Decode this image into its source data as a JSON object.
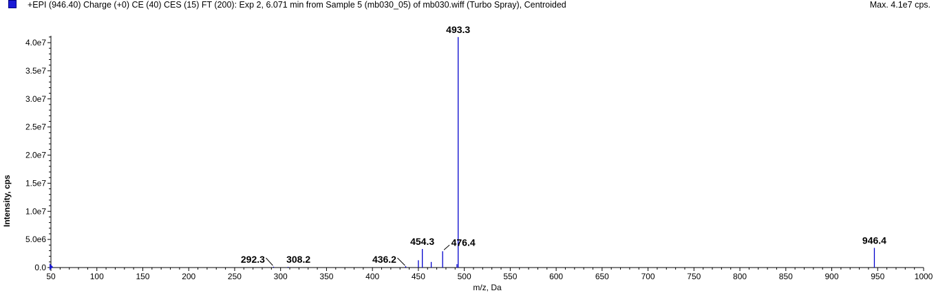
{
  "header": {
    "title": "+EPI (946.40) Charge (+0) CE (40) CES (15) FT (200): Exp 2, 6.071 min from Sample 5 (mb030_05) of mb030.wiff (Turbo Spray), Centroided",
    "max_label": "Max. 4.1e7 cps."
  },
  "colors": {
    "series": "#0000cc",
    "swatch": "#1a1ad6"
  },
  "chart_data": {
    "type": "bar",
    "xlabel": "m/z, Da",
    "ylabel": "Intensity, cps",
    "xlim": [
      50,
      1000
    ],
    "ylim": [
      0,
      41500000
    ],
    "x_ticks": [
      50,
      100,
      150,
      200,
      250,
      300,
      350,
      400,
      450,
      500,
      550,
      600,
      650,
      700,
      750,
      800,
      850,
      900,
      950,
      1000
    ],
    "y_ticks": [
      {
        "value": 0,
        "label": "0.0"
      },
      {
        "value": 5000000,
        "label": "5.0e6"
      },
      {
        "value": 10000000,
        "label": "1.0e7"
      },
      {
        "value": 15000000,
        "label": "1.5e7"
      },
      {
        "value": 20000000,
        "label": "2.0e7"
      },
      {
        "value": 25000000,
        "label": "2.5e7"
      },
      {
        "value": 30000000,
        "label": "3.0e7"
      },
      {
        "value": 35000000,
        "label": "3.5e7"
      },
      {
        "value": 40000000,
        "label": "4.0e7"
      }
    ],
    "peaks": [
      {
        "mz": 292.3,
        "intensity": 150000
      },
      {
        "mz": 308.2,
        "intensity": 120000
      },
      {
        "mz": 436.2,
        "intensity": 250000
      },
      {
        "mz": 450.0,
        "intensity": 1300000
      },
      {
        "mz": 454.3,
        "intensity": 3300000
      },
      {
        "mz": 464.0,
        "intensity": 1000000
      },
      {
        "mz": 476.4,
        "intensity": 2900000
      },
      {
        "mz": 492.0,
        "intensity": 600000
      },
      {
        "mz": 493.3,
        "intensity": 41000000
      },
      {
        "mz": 946.4,
        "intensity": 3500000
      }
    ],
    "annotations": [
      {
        "mz": 292.3,
        "label": "292.3",
        "leader": true
      },
      {
        "mz": 308.2,
        "label": "308.2",
        "leader": false
      },
      {
        "mz": 436.2,
        "label": "436.2",
        "leader": true
      },
      {
        "mz": 454.3,
        "label": "454.3",
        "leader": false
      },
      {
        "mz": 476.4,
        "label": "476.4",
        "leader": true
      },
      {
        "mz": 493.3,
        "label": "493.3",
        "leader": false
      },
      {
        "mz": 946.4,
        "label": "946.4",
        "leader": false
      }
    ]
  }
}
